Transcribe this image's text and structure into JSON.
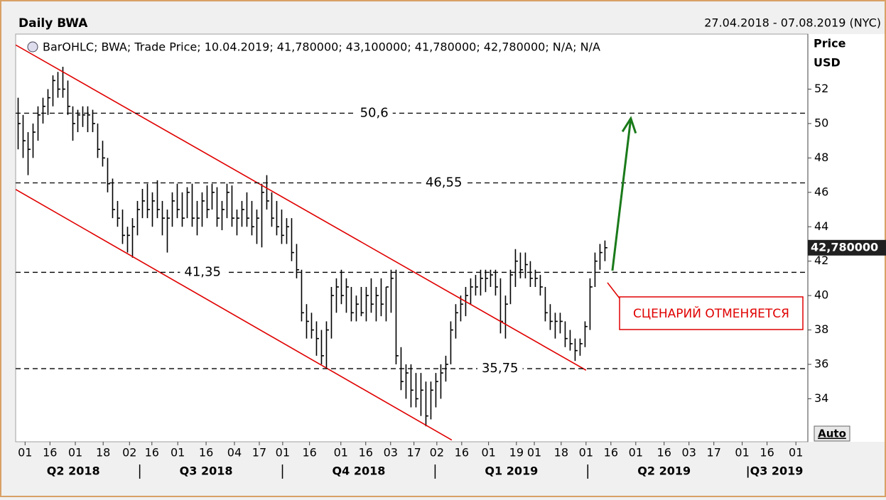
{
  "chart_data": {
    "type": "ohlc",
    "title": "Daily BWA",
    "date_range": "27.04.2018 - 07.08.2019 (NYC)",
    "legend": "BarOHLC; BWA; Trade Price; 10.04.2019; 41,780000; 43,100000; 41,780000; 42,780000; N/A; N/A",
    "y_label": [
      "Price",
      "USD"
    ],
    "auto_button": "Auto",
    "color": "#000000",
    "high": [
      51.5,
      50.5,
      49.5,
      50,
      51,
      51.5,
      52,
      52.8,
      53,
      53.3,
      52.5,
      51,
      50.8,
      51,
      51,
      50.8,
      50,
      49,
      48,
      46.8,
      45.5,
      45,
      44,
      44.5,
      45.5,
      46.2,
      46.5,
      46,
      46.7,
      45.5,
      45,
      46,
      46.5,
      46,
      46.3,
      46.5,
      45.5,
      46,
      46.4,
      46.5,
      46.3,
      45.5,
      46.5,
      46.4,
      45,
      45.5,
      46,
      45.5,
      45,
      46.5,
      47,
      46,
      45.5,
      45,
      44.5,
      44.5,
      43,
      41.5,
      39.5,
      39,
      38.5,
      38,
      38.5,
      40.5,
      41,
      41.5,
      41,
      40.5,
      40,
      40.5,
      40.5,
      41,
      40.5,
      41,
      40.5,
      41.5,
      41.5,
      37,
      36,
      36,
      35.5,
      35.5,
      35,
      35,
      35.5,
      36,
      36.5,
      38.5,
      39.5,
      40,
      40.5,
      41,
      41.2,
      41.5,
      41.5,
      41.5,
      41.5,
      41,
      40,
      41.5,
      42.7,
      42.5,
      42.5,
      42,
      41.5,
      41.2,
      40.5,
      39.5,
      39,
      39,
      38.5,
      38,
      37.5,
      37.5,
      38.5,
      41,
      42.5,
      43,
      43.2
    ],
    "low": [
      48.5,
      48,
      47,
      48,
      49,
      50,
      50.5,
      51,
      51.5,
      51.5,
      50.5,
      49,
      49.5,
      49.8,
      49.5,
      49.5,
      48,
      47.5,
      46,
      44.5,
      44,
      43,
      42.5,
      42.2,
      43.5,
      44.5,
      44.5,
      44,
      44.5,
      43.5,
      42.5,
      44,
      44.5,
      44,
      44.5,
      44,
      43.5,
      44,
      44.5,
      45,
      44,
      43.8,
      44.5,
      44,
      43.5,
      44,
      44,
      43.5,
      43,
      42.8,
      45,
      44,
      43.5,
      43,
      43,
      42,
      41,
      38.5,
      37.5,
      37.5,
      36.5,
      36,
      35.8,
      37.5,
      39,
      39.5,
      39,
      38.5,
      38.5,
      38.8,
      38.5,
      39,
      38.5,
      38.8,
      38.5,
      39,
      36,
      34.5,
      34,
      33.5,
      33.5,
      33,
      32.4,
      32.8,
      33.5,
      34,
      35,
      36,
      37.5,
      38.5,
      38.8,
      39.5,
      40,
      40,
      40.2,
      40.5,
      40,
      37.8,
      37.5,
      39.5,
      40.5,
      41,
      41,
      40.5,
      40.5,
      40,
      38.5,
      38,
      37.5,
      37.8,
      37,
      36.8,
      36.2,
      36.5,
      37,
      38,
      40.5,
      41.5,
      42
    ],
    "close": [
      50,
      49,
      48.5,
      49.5,
      50.5,
      51,
      51.5,
      52.5,
      52,
      52,
      51,
      50,
      50.5,
      50.5,
      50.5,
      50,
      48.5,
      48,
      46.5,
      45,
      44.5,
      43.5,
      43.5,
      44,
      45,
      45.5,
      45,
      45.5,
      45,
      44.5,
      44.5,
      45.5,
      45,
      44.5,
      46,
      44.5,
      44.5,
      45.5,
      45,
      46,
      44.5,
      45,
      46,
      44.5,
      44.5,
      45,
      44.5,
      44,
      44.5,
      46,
      45.5,
      44.5,
      44,
      43.5,
      44,
      42.5,
      41.5,
      39,
      38.5,
      38,
      37.5,
      36.5,
      38,
      40,
      40.5,
      40,
      40.5,
      39,
      39.5,
      39,
      40,
      39.5,
      40,
      39.5,
      40.5,
      41,
      36.5,
      35,
      35.5,
      34.5,
      34,
      34.5,
      33,
      34.5,
      35,
      35.5,
      36,
      38,
      39,
      39.5,
      40,
      40.5,
      40.5,
      41,
      41,
      41.2,
      40.5,
      38.5,
      39.5,
      41.2,
      42,
      41.5,
      41.8,
      41,
      41,
      40.5,
      39,
      38.5,
      38.5,
      38.5,
      37.5,
      37.2,
      36.8,
      37.2,
      38.2,
      40.5,
      42,
      42.5,
      42.78
    ],
    "last_value": {
      "value": 42.78,
      "label": "42,780000"
    },
    "xlim": [
      -0.5,
      158.8
    ],
    "xticks": [
      {
        "value": 1.4,
        "label": "01"
      },
      {
        "value": 6.4,
        "label": "16"
      },
      {
        "value": 11.5,
        "label": "01"
      },
      {
        "value": 17.1,
        "label": "18"
      },
      {
        "value": 22.4,
        "label": "02"
      },
      {
        "value": 26.9,
        "label": "16"
      },
      {
        "value": 32.1,
        "label": "01"
      },
      {
        "value": 37.8,
        "label": "16"
      },
      {
        "value": 43.5,
        "label": "04"
      },
      {
        "value": 48.5,
        "label": "17"
      },
      {
        "value": 53.2,
        "label": "01"
      },
      {
        "value": 58.6,
        "label": "16"
      },
      {
        "value": 64.9,
        "label": "01"
      },
      {
        "value": 69.9,
        "label": "16"
      },
      {
        "value": 74.9,
        "label": "03"
      },
      {
        "value": 79.6,
        "label": "17"
      },
      {
        "value": 84.2,
        "label": "02"
      },
      {
        "value": 89.2,
        "label": "16"
      },
      {
        "value": 94.6,
        "label": "01"
      },
      {
        "value": 100.2,
        "label": "19"
      },
      {
        "value": 103.8,
        "label": "01"
      },
      {
        "value": 109.2,
        "label": "18"
      },
      {
        "value": 114.2,
        "label": "01"
      },
      {
        "value": 119.2,
        "label": "16"
      },
      {
        "value": 124.2,
        "label": "01"
      },
      {
        "value": 129.9,
        "label": "16"
      },
      {
        "value": 134.9,
        "label": "03"
      },
      {
        "value": 139.9,
        "label": "17"
      },
      {
        "value": 145.6,
        "label": "01"
      },
      {
        "value": 150.6,
        "label": "16"
      },
      {
        "value": 156.4,
        "label": "01"
      }
    ],
    "quarters": [
      {
        "value": 11.1,
        "label": "Q2 2018"
      },
      {
        "value": 37.8,
        "label": "Q3 2018"
      },
      {
        "value": 68.5,
        "label": "Q4 2018"
      },
      {
        "value": 99.2,
        "label": "Q1 2019"
      },
      {
        "value": 129.9,
        "label": "Q2 2019"
      },
      {
        "value": 152.1,
        "label": "|Q3 2019"
      }
    ],
    "ylim": [
      31.5,
      55.2
    ],
    "yticks": [
      34,
      36,
      38,
      40,
      42,
      44,
      46,
      48,
      50,
      52
    ],
    "levels": [
      {
        "value": 50.6,
        "label": "50,6",
        "x": 71.6
      },
      {
        "value": 46.55,
        "label": "46,55",
        "x": 85.6
      },
      {
        "value": 41.35,
        "label": "41,35",
        "x": 37.1
      },
      {
        "value": 35.75,
        "label": "35,75",
        "x": 96.9
      }
    ],
    "trendlines": [
      {
        "color": "#e00000",
        "x": [
          -0.5,
          114.2
        ],
        "y": [
          54.57,
          35.66
        ]
      },
      {
        "color": "#e00000",
        "x": [
          -0.5,
          87.2
        ],
        "y": [
          46.17,
          31.6
        ]
      }
    ],
    "arrow": {
      "color": "#1a7a1a",
      "x": [
        119.5,
        123.2
      ],
      "y": [
        41.45,
        50.3
      ]
    },
    "annotation": "СЦЕНАРИЙ ОТМЕНЯЕТСЯ"
  }
}
